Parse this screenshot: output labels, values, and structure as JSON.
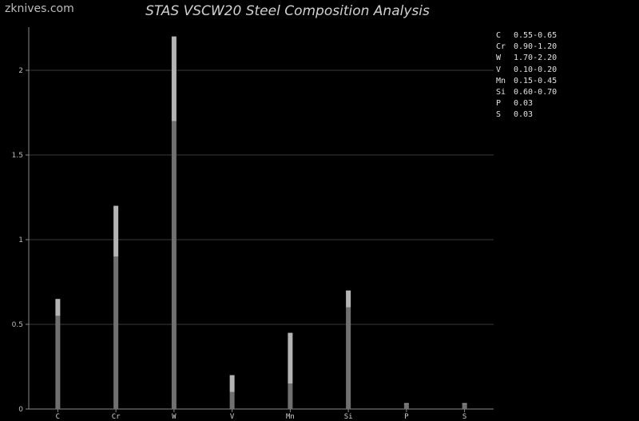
{
  "watermark": "zknives.com",
  "chart_data": {
    "type": "bar",
    "title": "STAS VSCW20 Steel Composition Analysis",
    "categories": [
      "C",
      "Cr",
      "W",
      "V",
      "Mn",
      "Si",
      "P",
      "S"
    ],
    "series": [
      {
        "min": [
          0.55,
          0.9,
          1.7,
          0.1,
          0.15,
          0.6,
          0.03,
          0.03
        ],
        "max": [
          0.65,
          1.2,
          2.2,
          0.2,
          0.45,
          0.7,
          0.03,
          0.03
        ]
      }
    ],
    "yticks": [
      "0",
      "0.5",
      "1",
      "1.5",
      "2"
    ],
    "ylim": [
      0,
      2.2
    ],
    "grid": true,
    "legend": [
      {
        "element": "C",
        "range": "0.55-0.65"
      },
      {
        "element": "Cr",
        "range": "0.90-1.20"
      },
      {
        "element": "W",
        "range": "1.70-2.20"
      },
      {
        "element": "V",
        "range": "0.10-0.20"
      },
      {
        "element": "Mn",
        "range": "0.15-0.45"
      },
      {
        "element": "Si",
        "range": "0.60-0.70"
      },
      {
        "element": "P",
        "range": "0.03"
      },
      {
        "element": "S",
        "range": "0.03"
      }
    ],
    "legend_position": "top-right",
    "colors": {
      "background": "#000000",
      "bar_min": "#707070",
      "bar_range": "#b4b4b4",
      "grid": "#3a3a3a"
    }
  }
}
